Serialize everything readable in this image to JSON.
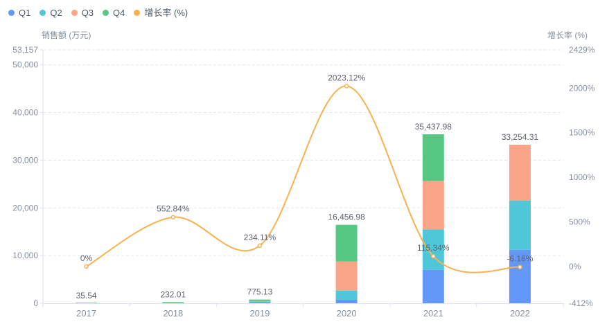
{
  "chart_data": {
    "type": "bar",
    "subtype": "stacked-bar-with-line-overlay",
    "title": "",
    "categories": [
      "2017",
      "2018",
      "2019",
      "2020",
      "2021",
      "2022"
    ],
    "series": [
      {
        "name": "Q1",
        "color": "#6398F9",
        "values": [
          0,
          0,
          150,
          730,
          7000,
          11200
        ]
      },
      {
        "name": "Q2",
        "color": "#4FC7D8",
        "values": [
          0,
          0,
          250,
          1900,
          8500,
          10350
        ]
      },
      {
        "name": "Q3",
        "color": "#FAA588",
        "values": [
          35.54,
          0,
          75.13,
          6150,
          10150,
          11704.31
        ]
      },
      {
        "name": "Q4",
        "color": "#57C884",
        "values": [
          0,
          232.01,
          300,
          7676.98,
          9787.98,
          0
        ]
      }
    ],
    "stack_totals": [
      35.54,
      232.01,
      775.13,
      16456.98,
      35437.98,
      33254.31
    ],
    "stack_total_labels": [
      "35.54",
      "232.01",
      "775.13",
      "16,456.98",
      "35,437.98",
      "33,254.31"
    ],
    "growth_line": {
      "name": "增长率 (%)",
      "color": "#F8B14E",
      "values": [
        0,
        552.84,
        234.11,
        2023.12,
        115.34,
        -6.16
      ],
      "point_labels": [
        "0%",
        "552.84%",
        "234.11%",
        "2023.12%",
        "115.34%",
        "-6.16%"
      ]
    },
    "left_axis": {
      "title": "销售额 (万元)",
      "min": 0,
      "max": 53157,
      "tick_values": [
        0,
        10000,
        20000,
        30000,
        40000,
        50000,
        53157
      ],
      "tick_labels": [
        "0",
        "10,000",
        "20,000",
        "30,000",
        "40,000",
        "50,000",
        "53,157"
      ]
    },
    "right_axis": {
      "title": "增长率 (%)",
      "min": -412,
      "max": 2429,
      "tick_values": [
        -412,
        0,
        500,
        1000,
        1500,
        2000,
        2429
      ],
      "tick_labels": [
        "-412%",
        "0%",
        "500%",
        "1000%",
        "1500%",
        "2000%",
        "2429%"
      ]
    },
    "x_axis": {
      "labels": [
        "2017",
        "2018",
        "2019",
        "2020",
        "2021",
        "2022"
      ]
    },
    "legend_items": [
      {
        "label": "Q1",
        "color": "#6398F9"
      },
      {
        "label": "Q2",
        "color": "#4FC7D8"
      },
      {
        "label": "Q3",
        "color": "#FAA588"
      },
      {
        "label": "Q4",
        "color": "#57C884"
      },
      {
        "label": "增长率 (%)",
        "color": "#F8B14E"
      }
    ],
    "grid": true,
    "legend_position": "top-left",
    "colors": {
      "grid_line": "#E3E6ED",
      "axis_line": "#DCE1EA",
      "tick_text": "#86909C",
      "value_text": "#5E6470",
      "background": "#FFFFFF"
    }
  }
}
